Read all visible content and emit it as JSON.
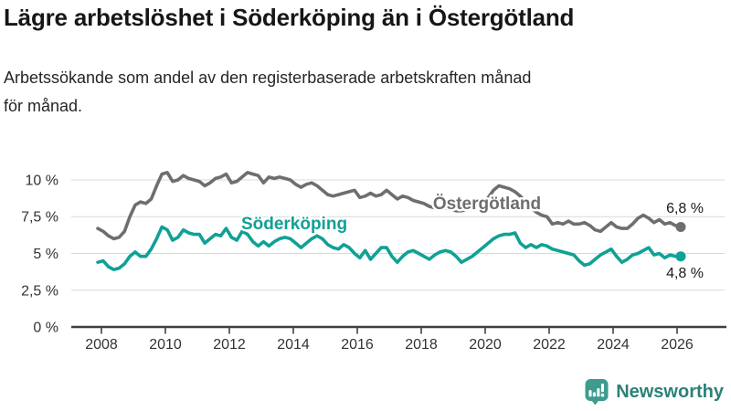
{
  "header": {
    "title": "Lägre arbetslöshet i Söderköping än i Östergötland",
    "subtitle_lines": [
      "Arbetssökande som andel av den registerbaserade arbetskraften månad",
      "för månad."
    ]
  },
  "chart_data": {
    "type": "line",
    "title": "Lägre arbetslöshet i Söderköping än i Östergötland",
    "unit": "%",
    "grid": "horizontal",
    "x_tick_labels": [
      "2008",
      "2010",
      "2012",
      "2014",
      "2016",
      "2018",
      "2020",
      "2022",
      "2024",
      "2026"
    ],
    "y_tick_labels": [
      "10 %",
      "7,5 %",
      "5 %",
      "2,5 %",
      "0 %"
    ],
    "y_ticks": [
      10,
      7.5,
      5,
      2.5,
      0
    ],
    "ylim": [
      0,
      11.5
    ],
    "x_start_year": 2008,
    "x_step_months": 2,
    "series": [
      {
        "name": "Östergötland",
        "color": "#6e6e6e",
        "end_label": "6,8 %",
        "end_value": 6.8,
        "values": [
          6.7,
          6.5,
          6.2,
          6.0,
          6.1,
          6.5,
          7.5,
          8.3,
          8.5,
          8.4,
          8.7,
          9.6,
          10.4,
          10.5,
          9.9,
          10.0,
          10.3,
          10.1,
          10.0,
          9.9,
          9.6,
          9.8,
          10.1,
          10.2,
          10.4,
          9.8,
          9.9,
          10.2,
          10.5,
          10.4,
          10.3,
          9.8,
          10.2,
          10.1,
          10.2,
          10.1,
          10.0,
          9.7,
          9.5,
          9.7,
          9.8,
          9.6,
          9.3,
          9.0,
          8.9,
          9.0,
          9.1,
          9.2,
          9.3,
          8.8,
          8.9,
          9.1,
          8.9,
          9.0,
          9.3,
          9.0,
          8.7,
          8.9,
          8.8,
          8.6,
          8.5,
          8.4,
          8.2,
          8.1,
          8.2,
          8.1,
          8.0,
          7.9,
          7.9,
          8.0,
          8.1,
          8.2,
          8.4,
          8.8,
          9.3,
          9.6,
          9.5,
          9.4,
          9.2,
          8.9,
          8.5,
          8.1,
          7.8,
          7.6,
          7.5,
          7.0,
          7.1,
          7.0,
          7.2,
          7.0,
          7.0,
          7.1,
          6.9,
          6.6,
          6.5,
          6.8,
          7.1,
          6.8,
          6.7,
          6.7,
          7.0,
          7.4,
          7.6,
          7.4,
          7.1,
          7.3,
          7.0,
          7.1,
          6.9,
          6.8
        ]
      },
      {
        "name": "Söderköping",
        "color": "#10a195",
        "end_label": "4,8 %",
        "end_value": 4.8,
        "values": [
          4.4,
          4.5,
          4.1,
          3.9,
          4.0,
          4.3,
          4.8,
          5.1,
          4.8,
          4.8,
          5.3,
          6.0,
          6.8,
          6.6,
          5.9,
          6.1,
          6.6,
          6.4,
          6.3,
          6.3,
          5.7,
          6.0,
          6.3,
          6.2,
          6.7,
          6.1,
          5.9,
          6.5,
          6.3,
          5.8,
          5.5,
          5.8,
          5.5,
          5.8,
          6.0,
          6.1,
          6.0,
          5.7,
          5.4,
          5.7,
          6.0,
          6.2,
          6.0,
          5.6,
          5.4,
          5.3,
          5.6,
          5.4,
          5.0,
          4.7,
          5.2,
          4.6,
          5.0,
          5.4,
          5.4,
          4.8,
          4.4,
          4.8,
          5.1,
          5.2,
          5.0,
          4.8,
          4.6,
          4.9,
          5.1,
          5.2,
          5.1,
          4.8,
          4.4,
          4.6,
          4.8,
          5.1,
          5.4,
          5.7,
          6.0,
          6.2,
          6.3,
          6.3,
          6.4,
          5.7,
          5.4,
          5.6,
          5.4,
          5.6,
          5.5,
          5.3,
          5.2,
          5.1,
          5.0,
          4.9,
          4.5,
          4.2,
          4.3,
          4.6,
          4.9,
          5.1,
          5.3,
          4.8,
          4.4,
          4.6,
          4.9,
          5.0,
          5.2,
          5.4,
          4.9,
          5.0,
          4.7,
          4.9,
          4.8,
          4.8
        ]
      }
    ]
  },
  "footer": {
    "brand": "Newsworthy",
    "logo_icon": "newsworthy-speech-bubble-bar-chart-icon",
    "brand_color": "#2b8177",
    "logo_color": "#3d9c8f"
  }
}
